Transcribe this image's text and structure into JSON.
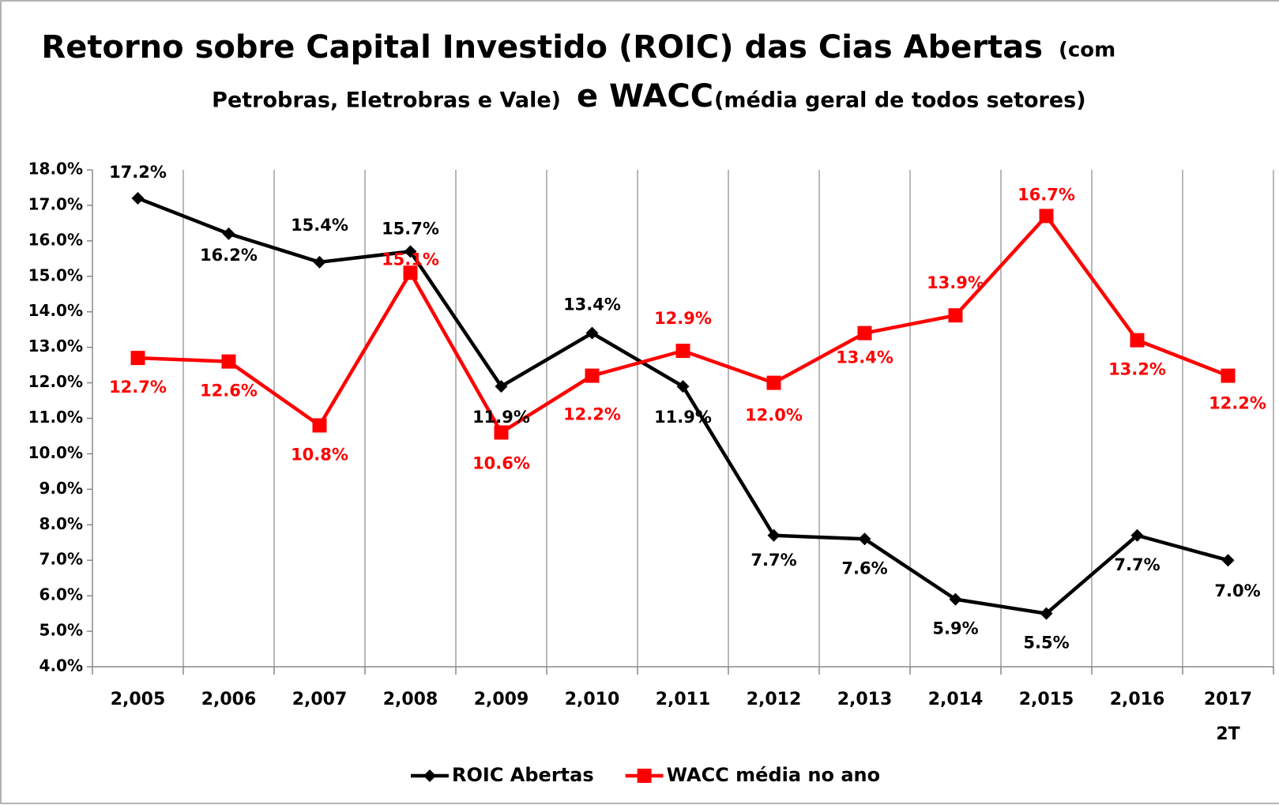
{
  "chart_data": {
    "type": "line",
    "title": [
      "Retorno sobre Capital Investido (ROIC) das Cias Abertas",
      "(com",
      "Petrobras, Eletrobras e Vale)",
      "e WACC",
      "(média geral de todos setores)"
    ],
    "categories": [
      "2,005",
      "2,006",
      "2,007",
      "2,008",
      "2,009",
      "2,010",
      "2,011",
      "2,012",
      "2,013",
      "2,014",
      "2,015",
      "2,016",
      "2017\n2T"
    ],
    "series": [
      {
        "name": "ROIC Abertas",
        "color": "#000000",
        "marker": "diamond",
        "values": [
          17.2,
          16.2,
          15.4,
          15.7,
          11.9,
          13.4,
          11.9,
          7.7,
          7.6,
          5.9,
          5.5,
          7.7,
          7.0
        ],
        "value_labels": [
          "17.2%",
          "16.2%",
          "15.4%",
          "15.7%",
          "11.9%",
          "13.4%",
          "11.9%",
          "7.7%",
          "7.6%",
          "5.9%",
          "5.5%",
          "7.7%",
          "7.0%"
        ]
      },
      {
        "name": "WACC média no ano",
        "color": "#ff0000",
        "marker": "square",
        "values": [
          12.7,
          12.6,
          10.8,
          15.1,
          10.6,
          12.2,
          12.9,
          12.0,
          13.4,
          13.9,
          16.7,
          13.2,
          12.2
        ],
        "value_labels": [
          "12.7%",
          "12.6%",
          "10.8%",
          "15.1%",
          "10.6%",
          "12.2%",
          "12.9%",
          "12.0%",
          "13.4%",
          "13.9%",
          "16.7%",
          "13.2%",
          "12.2%"
        ]
      }
    ],
    "ylim": [
      4,
      18
    ],
    "yticks": [
      {
        "value": 4,
        "label": "4.0%"
      },
      {
        "value": 5,
        "label": "5.0%"
      },
      {
        "value": 6,
        "label": "6.0%"
      },
      {
        "value": 7,
        "label": "7.0%"
      },
      {
        "value": 8,
        "label": "8.0%"
      },
      {
        "value": 9,
        "label": "9.0%"
      },
      {
        "value": 10,
        "label": "10.0%"
      },
      {
        "value": 11,
        "label": "11.0%"
      },
      {
        "value": 12,
        "label": "12.0%"
      },
      {
        "value": 13,
        "label": "13.0%"
      },
      {
        "value": 14,
        "label": "14.0%"
      },
      {
        "value": 15,
        "label": "15.0%"
      },
      {
        "value": 16,
        "label": "16.0%"
      },
      {
        "value": 17,
        "label": "17.0%"
      },
      {
        "value": 18,
        "label": "18.0%"
      }
    ],
    "grid": true,
    "legend": "bottom"
  }
}
